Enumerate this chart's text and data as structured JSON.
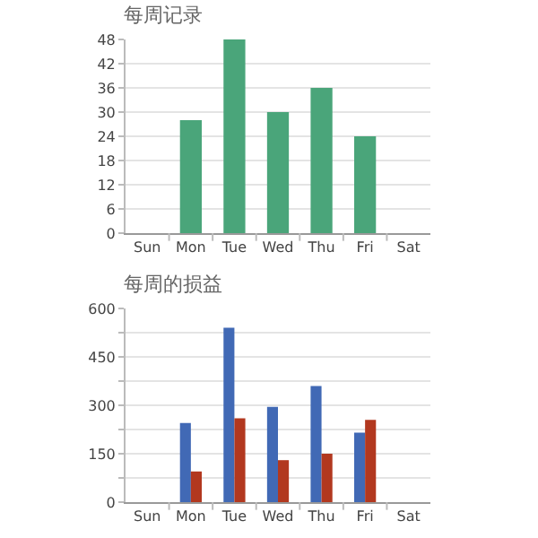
{
  "chart_data": [
    {
      "type": "bar",
      "title": "每周记录",
      "categories": [
        "Sun",
        "Mon",
        "Tue",
        "Wed",
        "Thu",
        "Fri",
        "Sat"
      ],
      "values": [
        null,
        28,
        48,
        30,
        36,
        24,
        null
      ],
      "color": "#4aa57a",
      "ylim": [
        0,
        48
      ],
      "yticks": [
        0,
        6,
        12,
        18,
        24,
        30,
        36,
        42,
        48
      ],
      "grid": "y"
    },
    {
      "type": "bar",
      "title": "每周的损益",
      "categories": [
        "Sun",
        "Mon",
        "Tue",
        "Wed",
        "Thu",
        "Fri",
        "Sat"
      ],
      "series": [
        {
          "color": "#4169b5",
          "values": [
            null,
            245,
            540,
            295,
            360,
            215,
            null
          ]
        },
        {
          "color": "#b2381f",
          "values": [
            null,
            95,
            260,
            130,
            150,
            255,
            null
          ]
        }
      ],
      "ylim": [
        0,
        600
      ],
      "yticks": [
        0,
        {
          "value": 75,
          "label": null
        },
        150,
        {
          "value": 225,
          "label": null
        },
        300,
        {
          "value": 375,
          "label": null
        },
        450,
        {
          "value": 525,
          "label": null
        },
        600
      ],
      "grid": "y"
    }
  ]
}
